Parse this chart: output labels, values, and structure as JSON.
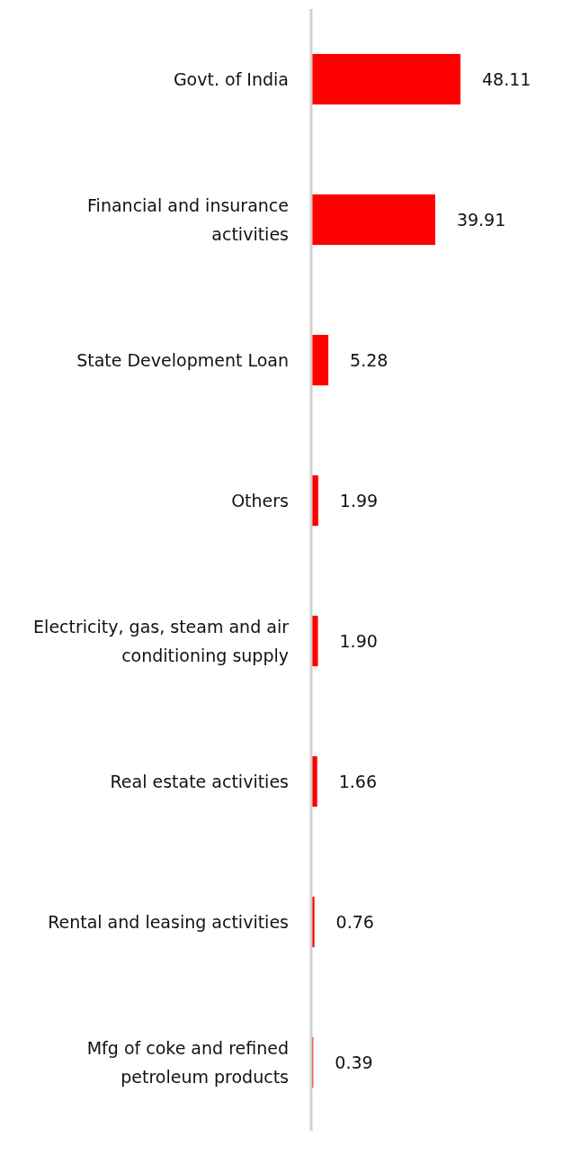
{
  "chart_data": {
    "type": "bar",
    "orientation": "horizontal",
    "data_labels": true,
    "categories": [
      "Govt. of India",
      "Financial and insurance activities",
      "State Development Loan",
      "Others",
      "Electricity, gas, steam and air conditioning supply",
      "Real estate activities",
      "Rental and leasing activities",
      "Mfg of coke and refined petroleum products"
    ],
    "values": [
      48.11,
      39.91,
      5.28,
      1.99,
      1.9,
      1.66,
      0.76,
      0.39
    ],
    "value_labels": [
      "48.11",
      "39.91",
      "5.28",
      "1.99",
      "1.90",
      "1.66",
      "0.76",
      "0.39"
    ],
    "color": "#ff0000"
  }
}
